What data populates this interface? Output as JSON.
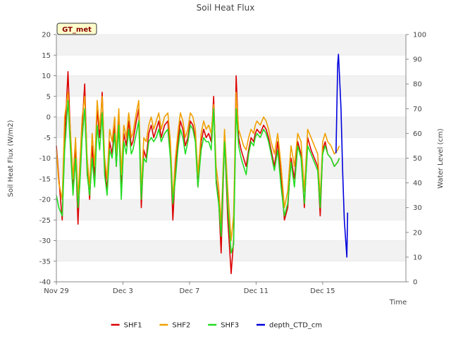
{
  "chart_data": {
    "type": "line",
    "title": "Soil Heat Flux",
    "badge": "GT_met",
    "xlabel": "Time",
    "ylabel": "Soil Heat Flux (W/m2)",
    "y2label": "Water Level (cm)",
    "x_unit": "days since Nov 29",
    "xlim": [
      0,
      21
    ],
    "ylim": [
      -40,
      20
    ],
    "y2lim": [
      0,
      100
    ],
    "x_ticks": [
      {
        "value": 0,
        "label": "Nov 29"
      },
      {
        "value": 4,
        "label": "Dec 3"
      },
      {
        "value": 8,
        "label": "Dec 7"
      },
      {
        "value": 12,
        "label": "Dec 11"
      },
      {
        "value": 16,
        "label": "Dec 15"
      }
    ],
    "y_ticks": [
      20,
      15,
      10,
      5,
      0,
      -5,
      -10,
      -15,
      -20,
      -25,
      -30,
      -35,
      -40
    ],
    "y2_ticks": [
      100,
      90,
      80,
      70,
      60,
      50,
      40,
      30,
      20,
      10,
      0
    ],
    "background_bands": true,
    "legend_position": "bottom-center",
    "series": [
      {
        "name": "SHF1",
        "color": "#dd0000",
        "axis": "left",
        "x": [
          0.0,
          0.15,
          0.35,
          0.5,
          0.7,
          0.85,
          1.0,
          1.15,
          1.3,
          1.4,
          1.55,
          1.7,
          1.85,
          2.0,
          2.15,
          2.3,
          2.45,
          2.6,
          2.75,
          2.9,
          3.05,
          3.2,
          3.35,
          3.5,
          3.6,
          3.75,
          3.9,
          4.05,
          4.2,
          4.35,
          4.5,
          4.6,
          4.8,
          4.95,
          5.1,
          5.25,
          5.4,
          5.55,
          5.7,
          5.85,
          6.0,
          6.15,
          6.3,
          6.5,
          6.7,
          6.85,
          7.0,
          7.15,
          7.3,
          7.45,
          7.6,
          7.75,
          7.9,
          8.05,
          8.2,
          8.35,
          8.5,
          8.7,
          8.85,
          9.0,
          9.15,
          9.3,
          9.45,
          9.6,
          9.75,
          9.9,
          10.1,
          10.3,
          10.5,
          10.65,
          10.8,
          10.95,
          11.1,
          11.25,
          11.4,
          11.55,
          11.7,
          11.85,
          11.95,
          12.05,
          12.25,
          12.45,
          12.6,
          12.75,
          12.9,
          13.1,
          13.3,
          13.5,
          13.7,
          13.9,
          14.1,
          14.3,
          14.5,
          14.7,
          14.9,
          15.1,
          15.3,
          15.5,
          15.7,
          15.85,
          16.0,
          16.15,
          16.3,
          16.5,
          16.7,
          16.9,
          17.0
        ],
        "values": [
          -7,
          -15,
          -25,
          -5,
          11,
          -5,
          -18,
          -8,
          -26,
          -15,
          -2,
          8,
          -12,
          -20,
          -7,
          -15,
          2,
          -5,
          6,
          -12,
          -18,
          -6,
          -9,
          -2,
          -12,
          0,
          -18,
          -4,
          -7,
          -1,
          -7,
          -6,
          -1,
          2,
          -22,
          -8,
          -10,
          -4,
          -2,
          -5,
          -3,
          -1,
          -5,
          -2,
          -1,
          -8,
          -25,
          -13,
          -6,
          -1,
          -3,
          -7,
          -5,
          -1,
          -2,
          -5,
          -17,
          -6,
          -3,
          -5,
          -4,
          -6,
          5,
          -15,
          -20,
          -33,
          -5,
          -25,
          -38,
          -30,
          10,
          -5,
          -8,
          -10,
          -12,
          -8,
          -5,
          -6,
          -4,
          -3,
          -4,
          -2,
          -3,
          -5,
          -8,
          -12,
          -6,
          -15,
          -25,
          -22,
          -10,
          -15,
          -6,
          -9,
          -22,
          -5,
          -8,
          -10,
          -12,
          -24,
          -8,
          -6,
          -9,
          -10,
          -12,
          -11,
          -10
        ],
        "_comment": "x and values lengths aligned by renderer"
      },
      {
        "name": "SHF2",
        "color": "#f0a000",
        "axis": "left",
        "x": [
          0.0,
          0.15,
          0.35,
          0.5,
          0.7,
          0.85,
          1.0,
          1.15,
          1.3,
          1.4,
          1.55,
          1.7,
          1.85,
          2.0,
          2.15,
          2.3,
          2.45,
          2.6,
          2.75,
          2.9,
          3.05,
          3.2,
          3.35,
          3.5,
          3.6,
          3.75,
          3.9,
          4.05,
          4.2,
          4.35,
          4.5,
          4.6,
          4.8,
          4.95,
          5.1,
          5.25,
          5.4,
          5.55,
          5.7,
          5.85,
          6.0,
          6.15,
          6.3,
          6.5,
          6.7,
          6.85,
          7.0,
          7.15,
          7.3,
          7.45,
          7.6,
          7.75,
          7.9,
          8.05,
          8.2,
          8.35,
          8.5,
          8.7,
          8.85,
          9.0,
          9.15,
          9.3,
          9.45,
          9.6,
          9.75,
          9.9,
          10.1,
          10.3,
          10.5,
          10.65,
          10.8,
          10.95,
          11.1,
          11.25,
          11.4,
          11.55,
          11.7,
          11.85,
          11.95,
          12.05,
          12.25,
          12.45,
          12.6,
          12.75,
          12.9,
          13.1,
          13.3,
          13.5,
          13.7,
          13.9,
          14.1,
          14.3,
          14.5,
          14.7,
          14.9,
          15.1,
          15.3,
          15.5,
          15.7,
          15.85,
          16.0,
          16.15,
          16.3,
          16.5,
          16.7,
          16.9,
          17.0
        ],
        "values": [
          -8,
          -16,
          -20,
          0,
          6,
          -4,
          -15,
          -5,
          -20,
          -12,
          0,
          5,
          -10,
          -17,
          -4,
          -12,
          4,
          -3,
          5,
          -10,
          -15,
          -3,
          -6,
          0,
          -9,
          2,
          -14,
          -2,
          -5,
          1,
          -5,
          -4,
          1,
          4,
          -18,
          -5,
          -6,
          -2,
          0,
          -3,
          -1,
          1,
          -3,
          0,
          1,
          -6,
          -20,
          -10,
          -4,
          1,
          -1,
          -5,
          -3,
          1,
          0,
          -3,
          -14,
          -4,
          -1,
          -3,
          -2,
          -4,
          3,
          -12,
          -17,
          -26,
          -3,
          -18,
          -30,
          -24,
          6,
          -3,
          -5,
          -7,
          -8,
          -5,
          -3,
          -4,
          -2,
          -1,
          -2,
          0,
          -1,
          -3,
          -6,
          -9,
          -4,
          -12,
          -22,
          -18,
          -7,
          -12,
          -4,
          -6,
          -18,
          -3,
          -5,
          -7,
          -9,
          -20,
          -6,
          -4,
          -6,
          -7,
          -9,
          -8,
          -7
        ]
      },
      {
        "name": "SHF3",
        "color": "#22dd22",
        "axis": "left",
        "x": [
          0.0,
          0.15,
          0.35,
          0.5,
          0.7,
          0.85,
          1.0,
          1.15,
          1.3,
          1.4,
          1.55,
          1.7,
          1.85,
          2.0,
          2.15,
          2.3,
          2.45,
          2.6,
          2.75,
          2.9,
          3.05,
          3.2,
          3.35,
          3.5,
          3.6,
          3.75,
          3.9,
          4.05,
          4.2,
          4.35,
          4.5,
          4.6,
          4.8,
          4.95,
          5.1,
          5.25,
          5.4,
          5.55,
          5.7,
          5.85,
          6.0,
          6.15,
          6.3,
          6.5,
          6.7,
          6.85,
          7.0,
          7.15,
          7.3,
          7.45,
          7.6,
          7.75,
          7.9,
          8.05,
          8.2,
          8.35,
          8.5,
          8.7,
          8.85,
          9.0,
          9.15,
          9.3,
          9.45,
          9.6,
          9.75,
          9.9,
          10.1,
          10.3,
          10.5,
          10.65,
          10.8,
          10.95,
          11.1,
          11.25,
          11.4,
          11.55,
          11.7,
          11.85,
          11.95,
          12.05,
          12.25,
          12.45,
          12.6,
          12.75,
          12.9,
          13.1,
          13.3,
          13.5,
          13.7,
          13.9,
          14.1,
          14.3,
          14.5,
          14.7,
          14.9,
          15.1,
          15.3,
          15.5,
          15.7,
          15.85,
          16.0,
          16.15,
          16.3,
          16.5,
          16.7,
          16.9,
          17.0
        ],
        "values": [
          -19,
          -22,
          -24,
          -8,
          4,
          -8,
          -19,
          -10,
          -22,
          -17,
          -5,
          2,
          -14,
          -19,
          -10,
          -17,
          -2,
          -8,
          1,
          -14,
          -19,
          -8,
          -10,
          -4,
          -12,
          -2,
          -20,
          -6,
          -9,
          -3,
          -9,
          -8,
          -4,
          -1,
          -20,
          -10,
          -11,
          -6,
          -5,
          -6,
          -5,
          -3,
          -6,
          -4,
          -3,
          -10,
          -21,
          -15,
          -8,
          -3,
          -5,
          -9,
          -6,
          -2,
          -3,
          -6,
          -17,
          -8,
          -5,
          -6,
          -6,
          -8,
          2,
          -16,
          -21,
          -29,
          -6,
          -22,
          -33,
          -31,
          2,
          -7,
          -10,
          -12,
          -14,
          -9,
          -6,
          -7,
          -5,
          -4,
          -5,
          -3,
          -4,
          -6,
          -9,
          -13,
          -8,
          -17,
          -24,
          -21,
          -11,
          -17,
          -7,
          -10,
          -21,
          -7,
          -9,
          -11,
          -13,
          -22,
          -9,
          -7,
          -9,
          -10,
          -12,
          -11,
          -10
        ]
      },
      {
        "name": "depth_CTD_cm",
        "color": "#0000dd",
        "axis": "right",
        "x": [
          16.8,
          16.85,
          16.9,
          16.95,
          17.0,
          17.1,
          17.2,
          17.3,
          17.4,
          17.45,
          17.5
        ],
        "values": [
          52,
          70,
          88,
          92,
          85,
          70,
          45,
          25,
          15,
          10,
          28
        ]
      }
    ]
  }
}
